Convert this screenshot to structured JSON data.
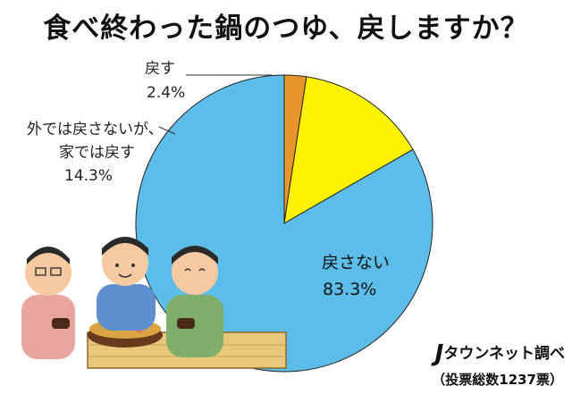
{
  "chart_data": {
    "type": "pie",
    "title": "食べ終わった鍋のつゆ、戻しますか？",
    "slices": [
      {
        "label": "戻さない",
        "value": 83.3,
        "value_label": "83.3%",
        "color": "#5BBDE8"
      },
      {
        "label": "外では戻さないが、家では戻す",
        "label_lines": [
          "外では戻さないが、",
          "家では戻す"
        ],
        "value": 14.3,
        "value_label": "14.3%",
        "color": "#FFF200"
      },
      {
        "label": "戻す",
        "value": 2.4,
        "value_label": "2.4%",
        "color": "#E8952C"
      }
    ]
  },
  "credit": {
    "logo": "J",
    "brand": "タウンネット調べ",
    "votes": "（投票総数1237票）"
  },
  "illustration": "three men in kimono eating from a hot pot"
}
